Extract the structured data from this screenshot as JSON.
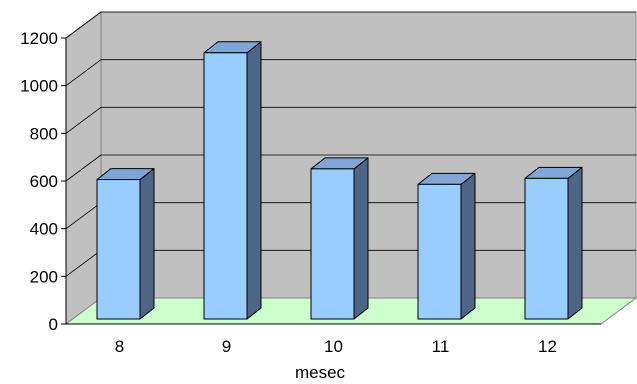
{
  "chart_data": {
    "type": "bar",
    "style": "3d-column",
    "categories": [
      "8",
      "9",
      "10",
      "11",
      "12"
    ],
    "values": [
      585,
      1117,
      630,
      565,
      590
    ],
    "title": "",
    "xlabel": "mesec",
    "ylabel": "",
    "ylim": [
      0,
      1200
    ],
    "yticks": [
      "0",
      "200",
      "400",
      "600",
      "800",
      "1000",
      "1200"
    ],
    "grid": true,
    "legend": "none",
    "colors": {
      "bar_front": "#99ccff",
      "bar_top": "#7fa6d6",
      "bar_side": "#4f6585",
      "wall": "#c0c0c0",
      "floor": "#ccffcc",
      "grid": "#000000"
    }
  }
}
